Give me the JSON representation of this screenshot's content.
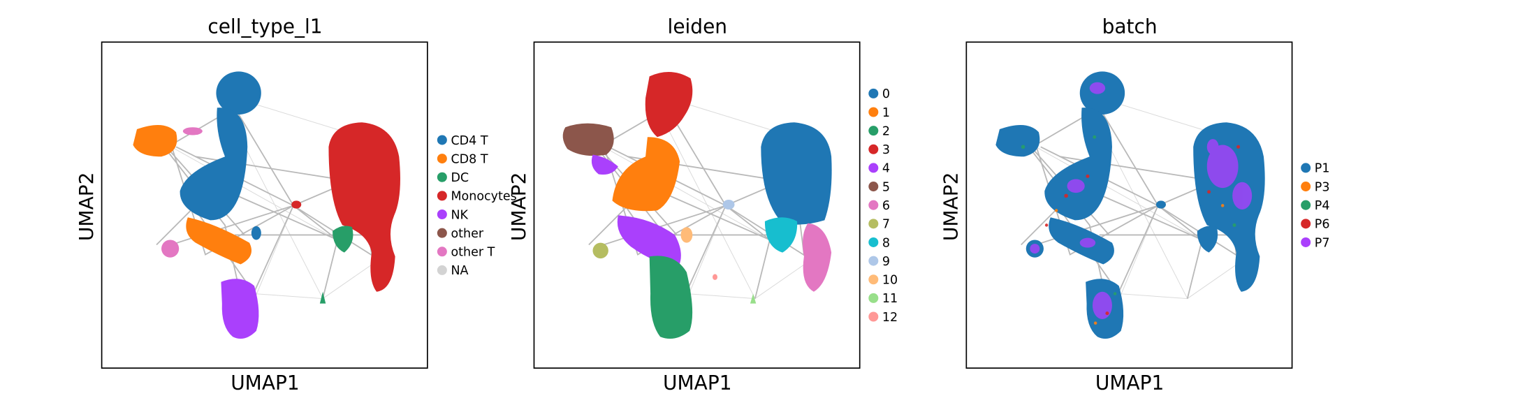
{
  "chart_data": [
    {
      "type": "scatter",
      "subtype": "umap-embedding-with-paga-graph",
      "title": "cell_type_l1",
      "xlabel": "UMAP1",
      "ylabel": "UMAP2",
      "legend_position": "right",
      "xticks": "none",
      "yticks": "none",
      "categories": [
        {
          "name": "CD4 T",
          "color": "#1f77b4"
        },
        {
          "name": "CD8 T",
          "color": "#ff7f0e"
        },
        {
          "name": "DC",
          "color": "#279e68"
        },
        {
          "name": "Monocytes",
          "color": "#d62728"
        },
        {
          "name": "NK",
          "color": "#aa40fc"
        },
        {
          "name": "other",
          "color": "#8c564b"
        },
        {
          "name": "other T",
          "color": "#e377c2"
        },
        {
          "name": "NA",
          "color": "#d3d3d3"
        }
      ]
    },
    {
      "type": "scatter",
      "subtype": "umap-embedding-with-paga-graph",
      "title": "leiden",
      "xlabel": "UMAP1",
      "ylabel": "UMAP2",
      "legend_position": "right",
      "xticks": "none",
      "yticks": "none",
      "categories": [
        {
          "name": "0",
          "color": "#1f77b4"
        },
        {
          "name": "1",
          "color": "#ff7f0e"
        },
        {
          "name": "2",
          "color": "#279e68"
        },
        {
          "name": "3",
          "color": "#d62728"
        },
        {
          "name": "4",
          "color": "#aa40fc"
        },
        {
          "name": "5",
          "color": "#8c564b"
        },
        {
          "name": "6",
          "color": "#e377c2"
        },
        {
          "name": "7",
          "color": "#b5bd61"
        },
        {
          "name": "8",
          "color": "#17becf"
        },
        {
          "name": "9",
          "color": "#aec7e8"
        },
        {
          "name": "10",
          "color": "#ffbb78"
        },
        {
          "name": "11",
          "color": "#98df8a"
        },
        {
          "name": "12",
          "color": "#ff9896"
        }
      ]
    },
    {
      "type": "scatter",
      "subtype": "umap-embedding-with-paga-graph",
      "title": "batch",
      "xlabel": "UMAP1",
      "ylabel": "UMAP2",
      "legend_position": "right",
      "xticks": "none",
      "yticks": "none",
      "categories": [
        {
          "name": "P1",
          "color": "#1f77b4"
        },
        {
          "name": "P3",
          "color": "#ff7f0e"
        },
        {
          "name": "P4",
          "color": "#279e68"
        },
        {
          "name": "P6",
          "color": "#d62728"
        },
        {
          "name": "P7",
          "color": "#aa40fc"
        }
      ]
    }
  ]
}
